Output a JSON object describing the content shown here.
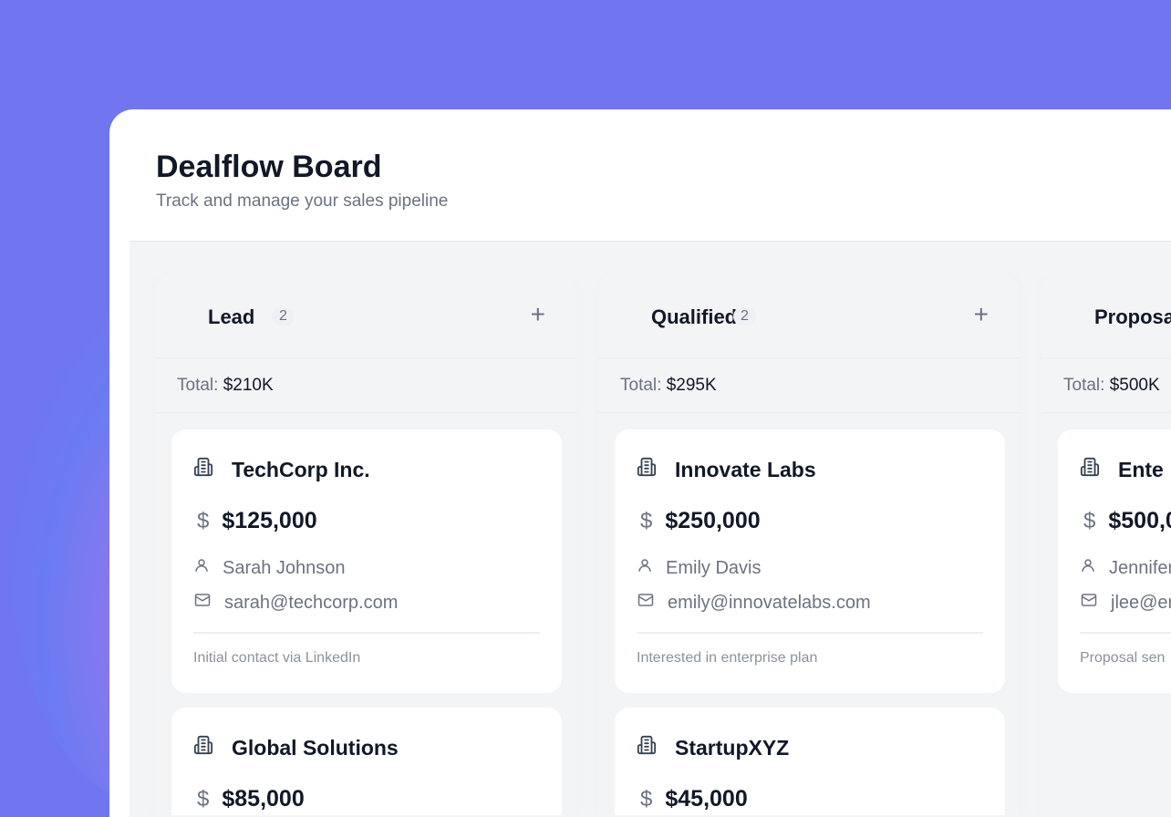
{
  "header": {
    "title": "Dealflow Board",
    "subtitle": "Track and manage your sales pipeline"
  },
  "colors": {
    "background": "#6f76ef",
    "text": "#111827",
    "muted": "#6b7280"
  },
  "columns": [
    {
      "name": "Lead",
      "count": "2",
      "total_label": "Total:",
      "total": "$210K",
      "cards": [
        {
          "company": "TechCorp Inc.",
          "amount": "$125,000",
          "contact": "Sarah Johnson",
          "email": "sarah@techcorp.com",
          "note": "Initial contact via LinkedIn"
        },
        {
          "company": "Global Solutions",
          "amount": "$85,000"
        }
      ]
    },
    {
      "name": "Qualified",
      "count": "2",
      "total_label": "Total:",
      "total": "$295K",
      "cards": [
        {
          "company": "Innovate Labs",
          "amount": "$250,000",
          "contact": "Emily Davis",
          "email": "emily@innovatelabs.com",
          "note": "Interested in enterprise plan"
        },
        {
          "company": "StartupXYZ",
          "amount": "$45,000"
        }
      ]
    },
    {
      "name": "Proposa",
      "total_label": "Total:",
      "total": "$500K",
      "cards": [
        {
          "company": "Ente",
          "amount": "$500,0",
          "contact": "Jennifer",
          "email": "jlee@en",
          "note": "Proposal sen"
        }
      ]
    }
  ],
  "icons": {
    "company": "building-icon",
    "amount": "dollar-icon",
    "contact": "user-icon",
    "email": "mail-icon",
    "add": "plus-icon"
  }
}
